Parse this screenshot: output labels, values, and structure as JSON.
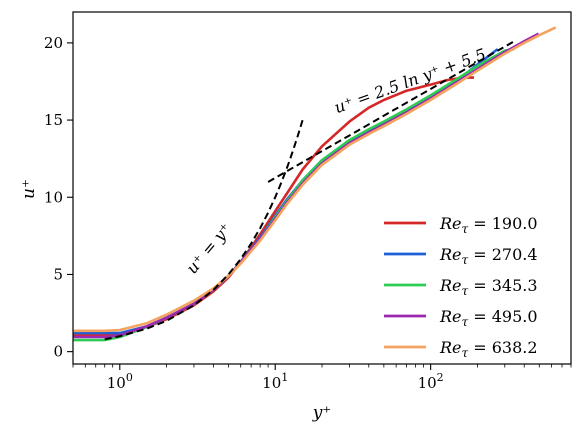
{
  "chart_data": {
    "type": "line",
    "title": "",
    "xlabel": "y⁺",
    "ylabel": "u⁺",
    "xscale": "log",
    "xlim": [
      0.5,
      800
    ],
    "ylim": [
      -0.8,
      22
    ],
    "grid": false,
    "legend_position": "bottom-right",
    "x_ticks": [
      {
        "value": 1,
        "base": "10",
        "exp": "0"
      },
      {
        "value": 10,
        "base": "10",
        "exp": "1"
      },
      {
        "value": 100,
        "base": "10",
        "exp": "2"
      }
    ],
    "y_ticks": [
      0,
      5,
      10,
      15,
      20
    ],
    "annotations": [
      {
        "text": "u⁺ = y⁺"
      },
      {
        "text": "u⁺ = 2.5 ln y⁺ + 5.5"
      }
    ],
    "reference_lines": [
      {
        "label": "u⁺ = y⁺",
        "style": "dashed",
        "x": [
          0.8,
          1,
          1.5,
          2,
          3,
          4,
          5,
          6,
          7,
          8,
          9,
          10,
          11,
          12,
          13,
          14,
          15
        ],
        "y": [
          0.8,
          1,
          1.5,
          2,
          3,
          4,
          5,
          6,
          7,
          8,
          9,
          10,
          11,
          12,
          13,
          14,
          15
        ]
      },
      {
        "label": "u⁺ = 2.5 ln y⁺ + 5.5",
        "style": "dashed",
        "x": [
          9,
          15,
          20,
          30,
          50,
          100,
          200,
          350
        ],
        "y": [
          10.99,
          12.27,
          12.99,
          14.0,
          15.28,
          17.01,
          18.75,
          20.14
        ]
      }
    ],
    "series": [
      {
        "name": "Re_τ = 190.0",
        "legend_label": "190.0",
        "color": "#d62728",
        "x": [
          0.5,
          0.7,
          0.8,
          1,
          1.5,
          2,
          3,
          4,
          5,
          6,
          8,
          10,
          12,
          15,
          20,
          30,
          40,
          50,
          70,
          100,
          130,
          160,
          190
        ],
        "y": [
          1.05,
          1.05,
          1.05,
          1.1,
          1.6,
          2.1,
          3.0,
          3.9,
          4.8,
          5.8,
          7.6,
          9.1,
          10.3,
          11.8,
          13.3,
          14.9,
          15.8,
          16.3,
          16.9,
          17.3,
          17.6,
          17.75,
          17.75
        ]
      },
      {
        "name": "Re_τ = 270.4",
        "legend_label": "270.4",
        "color": "#1f5fd6",
        "x": [
          0.5,
          0.7,
          0.8,
          1,
          1.5,
          2,
          3,
          4,
          5,
          6,
          8,
          10,
          12,
          15,
          20,
          30,
          40,
          50,
          70,
          100,
          150,
          200,
          270
        ],
        "y": [
          1.2,
          1.2,
          1.2,
          1.2,
          1.65,
          2.2,
          3.1,
          4.0,
          4.9,
          5.8,
          7.4,
          8.8,
          9.9,
          11.1,
          12.4,
          13.6,
          14.3,
          14.8,
          15.6,
          16.5,
          17.6,
          18.6,
          19.6
        ]
      },
      {
        "name": "Re_τ = 345.3",
        "legend_label": "345.3",
        "color": "#2ecc55",
        "x": [
          0.5,
          0.7,
          0.8,
          1,
          1.5,
          2,
          3,
          4,
          5,
          6,
          8,
          10,
          12,
          15,
          20,
          30,
          40,
          50,
          70,
          100,
          150,
          200,
          300,
          345
        ],
        "y": [
          0.75,
          0.75,
          0.75,
          0.95,
          1.6,
          2.2,
          3.1,
          4.0,
          4.9,
          5.8,
          7.3,
          8.7,
          9.8,
          11.1,
          12.4,
          13.7,
          14.4,
          14.9,
          15.7,
          16.6,
          17.7,
          18.5,
          19.5,
          19.6
        ]
      },
      {
        "name": "Re_τ = 495.0",
        "legend_label": "495.0",
        "color": "#9c27b0",
        "x": [
          0.5,
          0.7,
          0.8,
          1,
          1.5,
          2,
          3,
          4,
          5,
          6,
          8,
          10,
          12,
          15,
          20,
          30,
          40,
          50,
          70,
          100,
          150,
          200,
          300,
          400,
          495
        ],
        "y": [
          0.95,
          0.95,
          0.95,
          1.05,
          1.65,
          2.2,
          3.1,
          4.0,
          4.9,
          5.8,
          7.3,
          8.6,
          9.7,
          10.9,
          12.2,
          13.5,
          14.2,
          14.7,
          15.5,
          16.4,
          17.5,
          18.3,
          19.4,
          20.1,
          20.6
        ]
      },
      {
        "name": "Re_τ = 638.2",
        "legend_label": "638.2",
        "color": "#f4a460",
        "x": [
          0.5,
          0.7,
          0.8,
          1,
          1.5,
          2,
          3,
          4,
          5,
          6,
          8,
          10,
          12,
          15,
          20,
          30,
          40,
          50,
          70,
          100,
          150,
          200,
          300,
          400,
          500,
          638
        ],
        "y": [
          1.35,
          1.35,
          1.35,
          1.4,
          1.85,
          2.4,
          3.3,
          4.1,
          4.9,
          5.7,
          7.2,
          8.5,
          9.6,
          10.8,
          12.1,
          13.4,
          14.1,
          14.6,
          15.4,
          16.3,
          17.4,
          18.2,
          19.3,
          20.0,
          20.5,
          21.0
        ]
      }
    ]
  }
}
